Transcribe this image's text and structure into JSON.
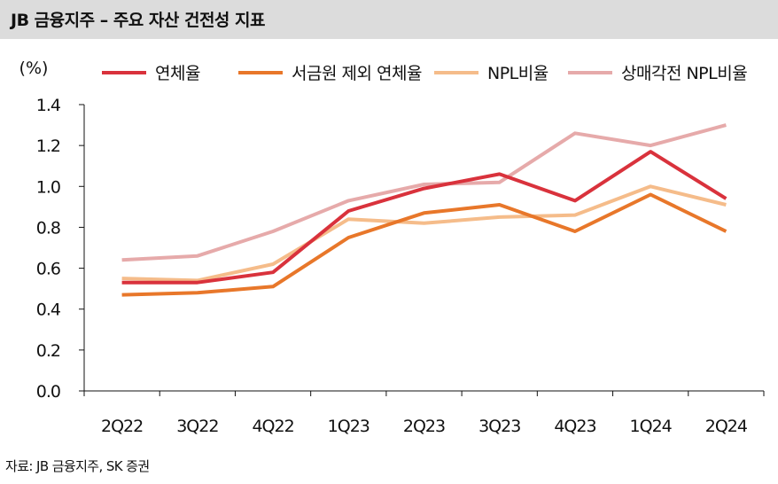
{
  "header": {
    "title": "JB 금융지주 – 주요 자산 건전성 지표"
  },
  "source": "자료: JB 금융지주, SK 증권",
  "chart_data": {
    "type": "line",
    "title": "JB 금융지주 – 주요 자산 건전성 지표",
    "ylabel": "(%)",
    "xlabel": "",
    "categories": [
      "2Q22",
      "3Q22",
      "4Q22",
      "1Q23",
      "2Q23",
      "3Q23",
      "4Q23",
      "1Q24",
      "2Q24"
    ],
    "ylim": [
      0.0,
      1.4
    ],
    "yticks": [
      "0.0",
      "0.2",
      "0.4",
      "0.6",
      "0.8",
      "1.0",
      "1.2",
      "1.4"
    ],
    "legend_position": "top",
    "series": [
      {
        "name": "연체율",
        "color": "#d9323c",
        "values": [
          0.53,
          0.53,
          0.58,
          0.88,
          0.99,
          1.06,
          0.93,
          1.17,
          0.94
        ]
      },
      {
        "name": "서금원 제외 연체율",
        "color": "#e8772a",
        "values": [
          0.47,
          0.48,
          0.51,
          0.75,
          0.87,
          0.91,
          0.78,
          0.96,
          0.78
        ]
      },
      {
        "name": "NPL비율",
        "color": "#f5bc8a",
        "values": [
          0.55,
          0.54,
          0.62,
          0.84,
          0.82,
          0.85,
          0.86,
          1.0,
          0.91
        ]
      },
      {
        "name": "상매각전 NPL비율",
        "color": "#e6aaaa",
        "values": [
          0.64,
          0.66,
          0.78,
          0.93,
          1.01,
          1.02,
          1.26,
          1.2,
          1.3
        ]
      }
    ]
  }
}
